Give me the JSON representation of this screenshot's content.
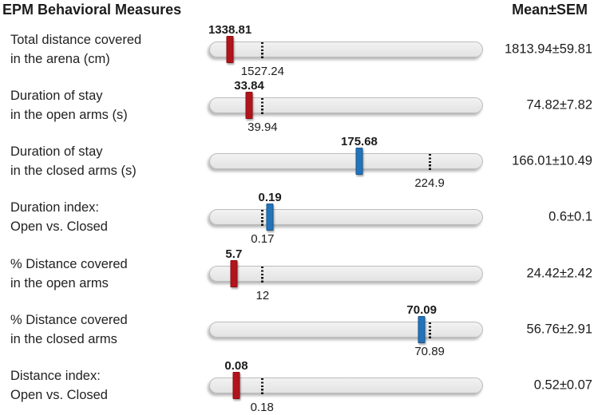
{
  "title": "EPM Behavioral Measures",
  "mean_sem_header": "Mean±SEM",
  "colors": {
    "red": "#b2141b",
    "blue": "#2373ba",
    "bar_fill": "#e3e3e3",
    "bar_border": "#bcbcbc",
    "text": "#1c1c1c"
  },
  "rows": [
    {
      "label_line1": "Total distance covered",
      "label_line2": "in the arena (cm)",
      "marker_value": "1338.81",
      "reference_value": "1527.24",
      "mean_sem": "1813.94±59.81",
      "marker_color": "red",
      "marker_pos_pct": 7.6,
      "reference_pos_pct": 19.5
    },
    {
      "label_line1": "Duration of stay",
      "label_line2": "in the open arms (s)",
      "marker_value": "33.84",
      "reference_value": "39.94",
      "mean_sem": "74.82±7.82",
      "marker_color": "red",
      "marker_pos_pct": 14.6,
      "reference_pos_pct": 19.5
    },
    {
      "label_line1": "Duration of stay",
      "label_line2": "in the closed arms (s)",
      "marker_value": "175.68",
      "reference_value": "224.9",
      "mean_sem": "166.01±10.49",
      "marker_color": "blue",
      "marker_pos_pct": 54.8,
      "reference_pos_pct": 80.5
    },
    {
      "label_line1": "Duration index:",
      "label_line2": "Open vs. Closed",
      "marker_value": "0.19",
      "reference_value": "0.17",
      "mean_sem": "0.6±0.1",
      "marker_color": "blue",
      "marker_pos_pct": 22.2,
      "reference_pos_pct": 19.5
    },
    {
      "label_line1": "% Distance covered",
      "label_line2": "in the open arms",
      "marker_value": "5.7",
      "reference_value": "12",
      "mean_sem": "24.42±2.42",
      "marker_color": "red",
      "marker_pos_pct": 9.0,
      "reference_pos_pct": 19.5
    },
    {
      "label_line1": "% Distance covered",
      "label_line2": "in the closed arms",
      "marker_value": "70.09",
      "reference_value": "70.89",
      "mean_sem": "56.76±2.91",
      "marker_color": "blue",
      "marker_pos_pct": 77.6,
      "reference_pos_pct": 80.5
    },
    {
      "label_line1": "Distance index:",
      "label_line2": "Open vs. Closed",
      "marker_value": "0.08",
      "reference_value": "0.18",
      "mean_sem": "0.52±0.07",
      "marker_color": "red",
      "marker_pos_pct": 9.9,
      "reference_pos_pct": 19.3
    }
  ],
  "chart_data": {
    "type": "bar",
    "orientation": "horizontal",
    "title": "EPM Behavioral Measures",
    "value_column_header": "Mean±SEM",
    "legend": "none",
    "categories": [
      "Total distance covered in the arena (cm)",
      "Duration of stay in the open arms (s)",
      "Duration of stay in the closed arms (s)",
      "Duration index: Open vs. Closed",
      "% Distance covered in the open arms",
      "% Distance covered in the closed arms",
      "Distance index: Open vs. Closed"
    ],
    "series": [
      {
        "name": "marker value (colored tick)",
        "values": [
          1338.81,
          33.84,
          175.68,
          0.19,
          5.7,
          70.09,
          0.08
        ]
      },
      {
        "name": "reference value (dotted line)",
        "values": [
          1527.24,
          39.94,
          224.9,
          0.17,
          12,
          70.89,
          0.18
        ]
      },
      {
        "name": "mean",
        "values": [
          1813.94,
          74.82,
          166.01,
          0.6,
          24.42,
          56.76,
          0.52
        ]
      },
      {
        "name": "sem",
        "values": [
          59.81,
          7.82,
          10.49,
          0.1,
          2.42,
          2.91,
          0.07
        ]
      }
    ],
    "marker_colors": [
      "red",
      "red",
      "blue",
      "blue",
      "red",
      "blue",
      "red"
    ]
  }
}
